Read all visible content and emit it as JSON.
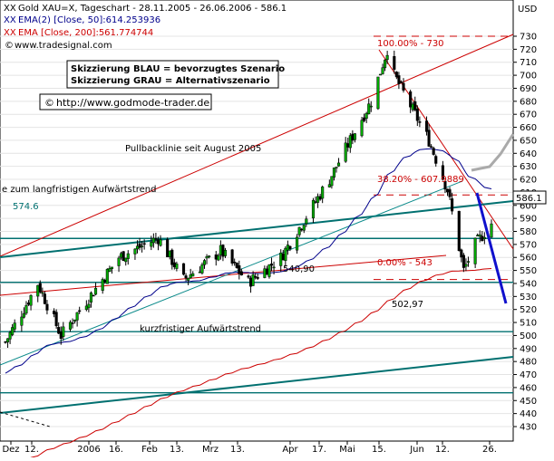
{
  "header": {
    "line1": "Gold XAU=X, Tageschart - 28.11.2005 - 26.06.2006 - 586.1",
    "line2": "EMA(2) [Close, 50]:614.253936",
    "line3": "EMA [Close, 200]:561.774744",
    "line4": "www.tradesignal.com",
    "line1_prefix": "XX",
    "line2_prefix": "XX",
    "line3_prefix": "XX"
  },
  "notes": {
    "scenario_blue": "Skizzierung BLAU = bevorzugtes Szenario",
    "scenario_grey": "Skizzierung GRAU = Alternativszenario",
    "copyright_symbol": "©",
    "url": "http://www.godmode-trader.de"
  },
  "annotations": {
    "pullback": "Pullbacklinie seit August 2005",
    "long_trend": "e zum langfristigen Aufwärtstrend",
    "short_trend": "kurzfristiger Aufwärtstrend",
    "level_574": "574.6",
    "level_540": "540,90",
    "level_502": "502,97",
    "fib_100": "100.00% - 730",
    "fib_382": "38.20% - 607.9889",
    "fib_0": "0.00% - 543",
    "last_price": "586.1"
  },
  "chart_data": {
    "type": "candlestick",
    "title": "Gold XAU=X, Tageschart - 28.11.2005 - 26.06.2006 - 586.1",
    "yunit": "USD",
    "ylim": [
      425,
      740
    ],
    "yticks": [
      430,
      440,
      450,
      460,
      470,
      480,
      490,
      500,
      510,
      520,
      530,
      540,
      550,
      560,
      570,
      580,
      590,
      600,
      610,
      620,
      630,
      640,
      650,
      660,
      670,
      680,
      690,
      700,
      710,
      720,
      730
    ],
    "xtick_labels": [
      "Dez",
      "12.",
      "2006",
      "16.",
      "Feb",
      "13.",
      "Mrz",
      "13.",
      "Apr",
      "17.",
      "Mai",
      "15.",
      "Jun",
      "12.",
      "26."
    ],
    "series": [
      {
        "name": "EMA(2) [Close, 50]",
        "color": "#00008b",
        "last": 614.253936
      },
      {
        "name": "EMA [Close, 200]",
        "color": "#cc0000",
        "last": 561.774744
      }
    ],
    "price_anchors": [
      {
        "date": "2005-11-28",
        "close": 495
      },
      {
        "date": "2005-12-12",
        "close": 540
      },
      {
        "date": "2005-12-22",
        "close": 500
      },
      {
        "date": "2006-01-16",
        "close": 560
      },
      {
        "date": "2006-02-02",
        "close": 575
      },
      {
        "date": "2006-02-13",
        "close": 543
      },
      {
        "date": "2006-03-01",
        "close": 565
      },
      {
        "date": "2006-03-13",
        "close": 540.9
      },
      {
        "date": "2006-03-27",
        "close": 560
      },
      {
        "date": "2006-04-17",
        "close": 620
      },
      {
        "date": "2006-05-05",
        "close": 680
      },
      {
        "date": "2006-05-12",
        "close": 720
      },
      {
        "date": "2006-05-15",
        "close": 700
      },
      {
        "date": "2006-05-30",
        "close": 650
      },
      {
        "date": "2006-06-07",
        "close": 612
      },
      {
        "date": "2006-06-14",
        "close": 550
      },
      {
        "date": "2006-06-19",
        "close": 570
      },
      {
        "date": "2006-06-26",
        "close": 586.1
      }
    ],
    "candles": [],
    "horizontal_levels": [
      574.6,
      540.9,
      502.97,
      456,
      730,
      607.9889,
      543
    ],
    "fibonacci": [
      {
        "label": "100.00%",
        "value": 730
      },
      {
        "label": "38.20%",
        "value": 607.9889
      },
      {
        "label": "0.00%",
        "value": 543
      }
    ],
    "projections": {
      "blue": {
        "label": "bevorzugtes Szenario",
        "from": 590,
        "to": 510
      },
      "grey": {
        "label": "Alternativszenario",
        "from": 613,
        "to": 640
      }
    },
    "last": 586.1,
    "grid": true,
    "colors": {
      "candle_up": "#00aa00",
      "candle_down": "#000000",
      "teal": "#007070",
      "trend_red": "#cc0000",
      "ema50": "#00008b",
      "ema200": "#cc0000",
      "blue_projection": "#1010cc",
      "grey_projection": "#aaaaaa",
      "fib": "#cc0000"
    }
  }
}
